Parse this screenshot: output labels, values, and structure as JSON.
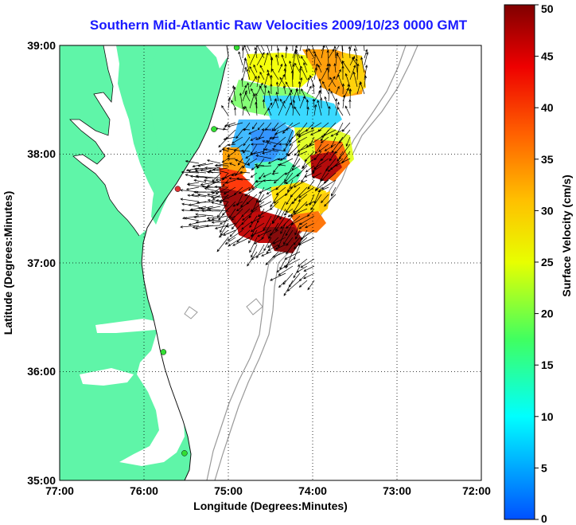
{
  "title": "Southern Mid-Atlantic Raw Velocities 2009/10/23 0000 GMT",
  "chart_data": {
    "type": "map",
    "title": "Southern Mid-Atlantic Raw Velocities 2009/10/23 0000 GMT",
    "xlabel": "Longitude (Degrees:Minutes)",
    "ylabel": "Latitude (Degrees:Minutes)",
    "x_ticks": [
      "77:00",
      "76:00",
      "75:00",
      "74:00",
      "73:00",
      "72:00"
    ],
    "y_ticks": [
      "39:00",
      "38:00",
      "37:00",
      "36:00",
      "35:00"
    ],
    "xlim": [
      -77,
      -72
    ],
    "ylim": [
      35,
      39
    ],
    "grid": "dotted",
    "colorbar": {
      "label": "Surface Velocity (cm/s)",
      "range": [
        0,
        50
      ],
      "ticks": [
        "0",
        "5",
        "10",
        "15",
        "20",
        "25",
        "30",
        "35",
        "40",
        "45",
        "50"
      ],
      "colormap": "jet"
    },
    "land_color": "#5ff5a8",
    "stations": [
      {
        "lon": -74.9,
        "lat": 38.98,
        "color": "#33dd33"
      },
      {
        "lon": -75.17,
        "lat": 38.23,
        "color": "#33dd33"
      },
      {
        "lon": -75.6,
        "lat": 37.68,
        "color": "#dd3333"
      },
      {
        "lon": -75.77,
        "lat": 36.18,
        "color": "#33dd33"
      },
      {
        "lon": -75.52,
        "lat": 35.25,
        "color": "#33dd33"
      }
    ]
  }
}
